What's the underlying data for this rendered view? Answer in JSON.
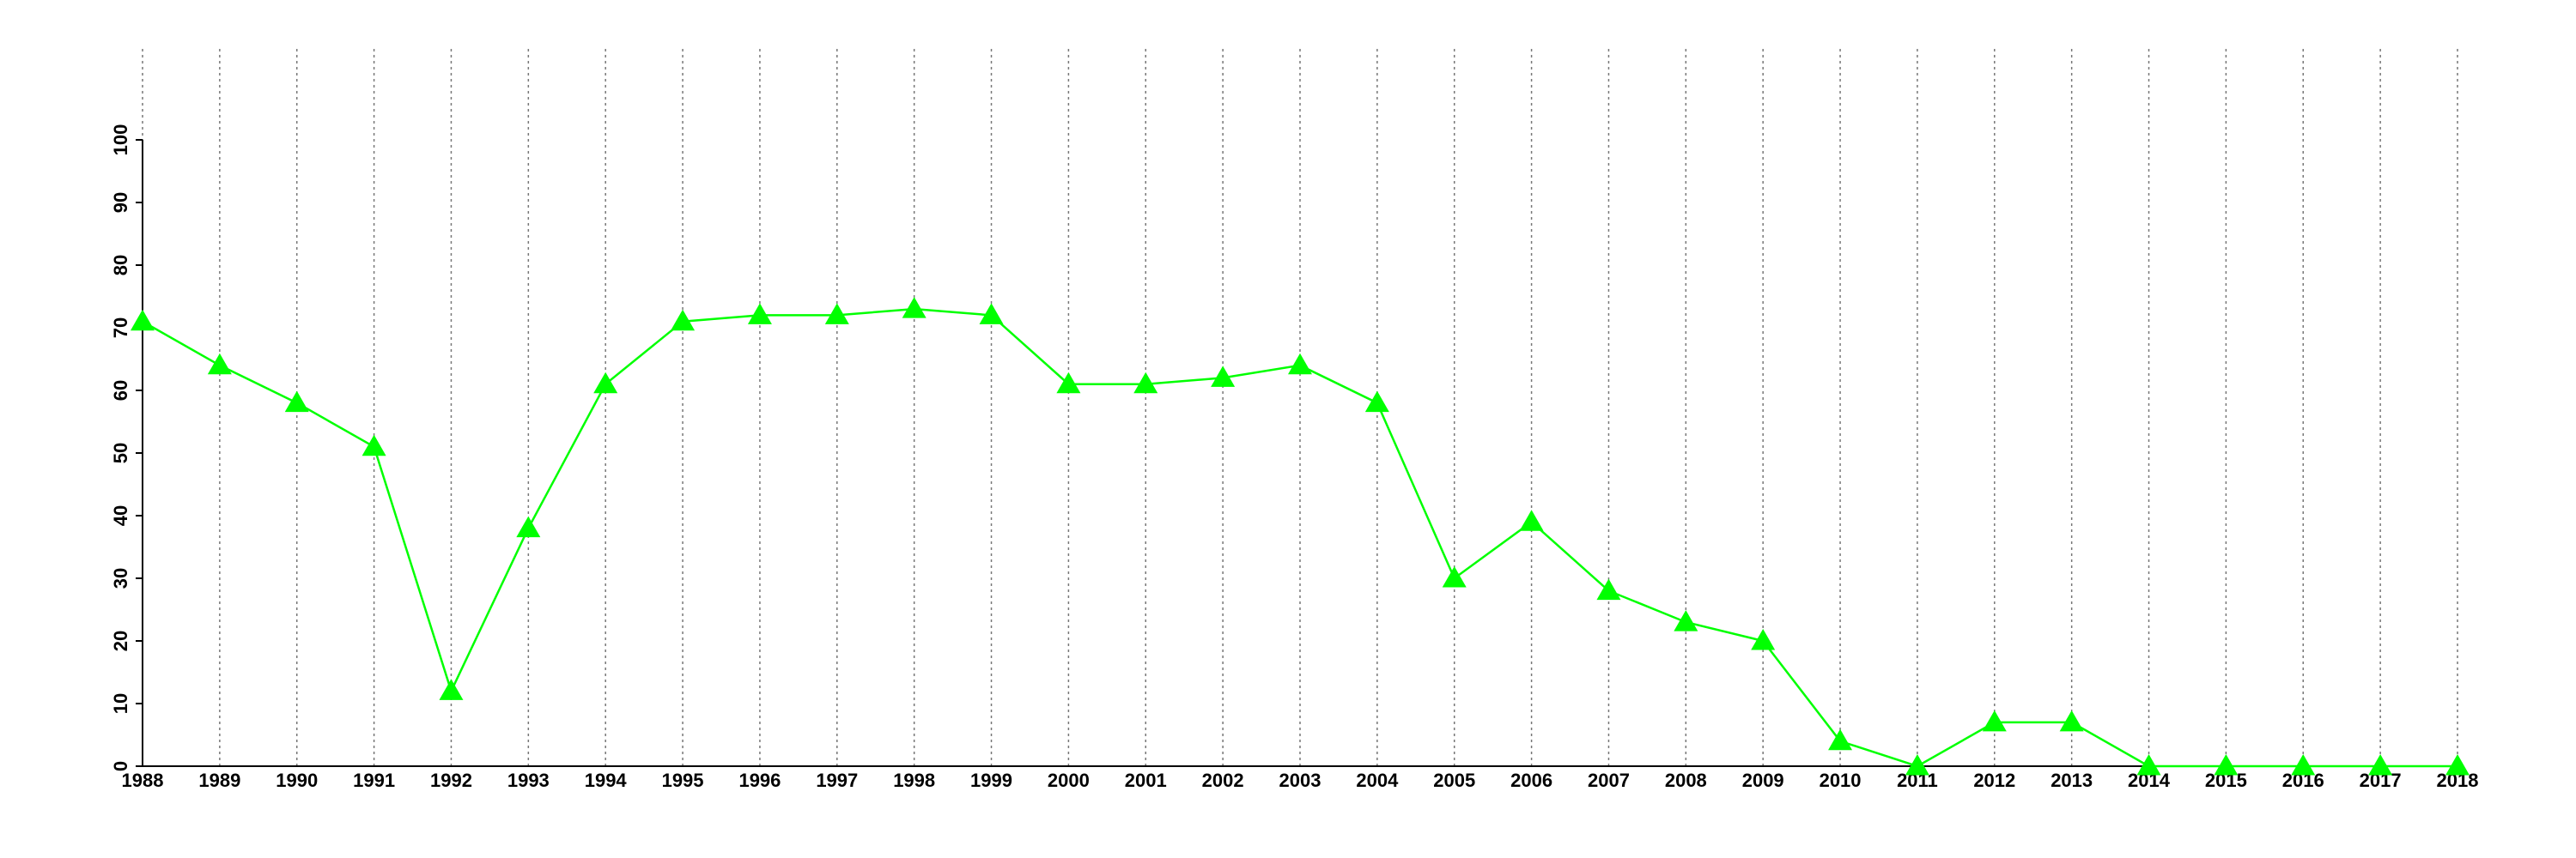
{
  "chart_data": {
    "type": "line",
    "x": [
      1988,
      1989,
      1990,
      1991,
      1992,
      1993,
      1994,
      1995,
      1996,
      1997,
      1998,
      1999,
      2000,
      2001,
      2002,
      2003,
      2004,
      2005,
      2006,
      2007,
      2008,
      2009,
      2010,
      2011,
      2012,
      2013,
      2014,
      2015,
      2016,
      2017,
      2018
    ],
    "values": [
      71,
      64,
      58,
      51,
      12,
      38,
      61,
      71,
      72,
      72,
      73,
      72,
      61,
      61,
      62,
      64,
      58,
      30,
      39,
      28,
      23,
      20,
      4,
      0,
      7,
      7,
      0,
      0,
      0,
      0,
      0
    ],
    "color": "#00ff00",
    "marker": "triangle",
    "xlim": [
      1988,
      2018
    ],
    "xticks": [
      1988,
      1989,
      1990,
      1991,
      1992,
      1993,
      1994,
      1995,
      1996,
      1997,
      1998,
      1999,
      2000,
      2001,
      2002,
      2003,
      2004,
      2005,
      2006,
      2007,
      2008,
      2009,
      2010,
      2011,
      2012,
      2013,
      2014,
      2015,
      2016,
      2017,
      2018
    ],
    "ylim": [
      0,
      100
    ],
    "yticks": [
      0,
      10,
      20,
      30,
      40,
      50,
      60,
      70,
      80,
      90,
      100
    ],
    "grid": "x"
  }
}
